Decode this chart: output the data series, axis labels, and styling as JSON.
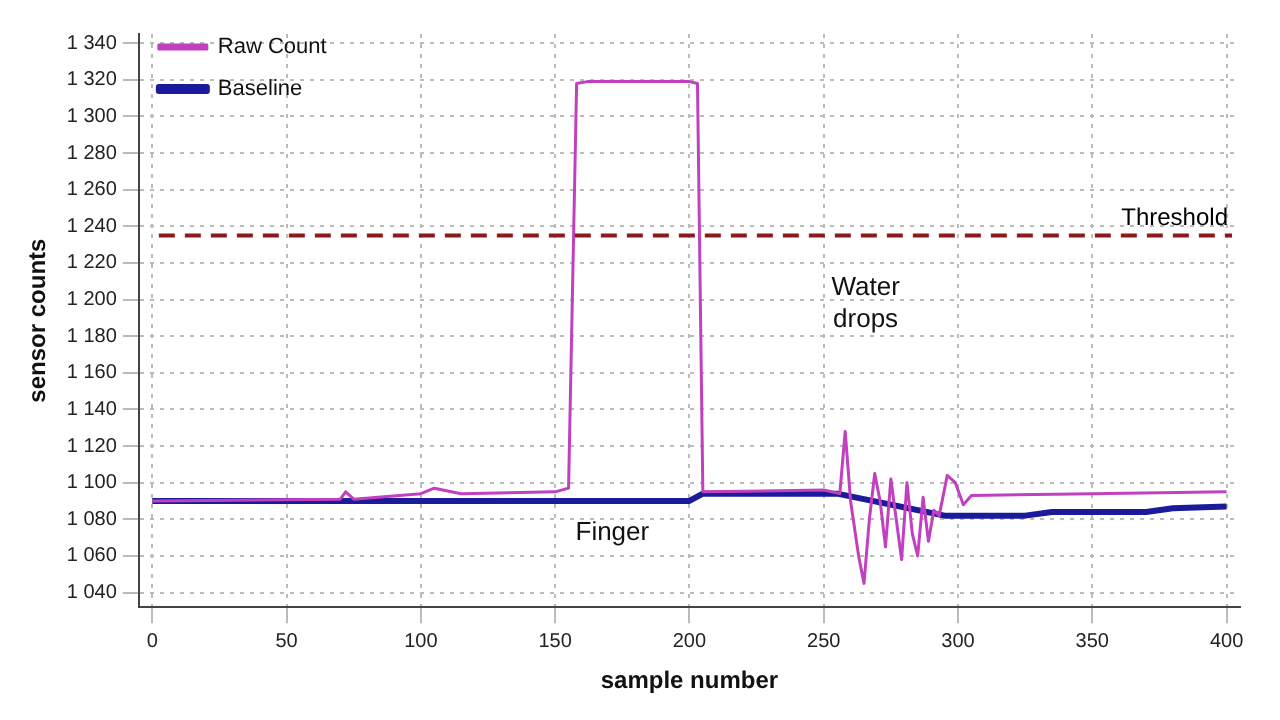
{
  "chart_data": {
    "type": "line",
    "xlabel": "sample number",
    "ylabel": "sensor counts",
    "xlim": [
      -5,
      405
    ],
    "xticks": [
      0,
      50,
      100,
      150,
      200,
      250,
      300,
      350,
      400
    ],
    "ylim": [
      1032,
      1345
    ],
    "yticks": [
      {
        "value": 1040,
        "label": "1 040"
      },
      {
        "value": 1060,
        "label": "1 060"
      },
      {
        "value": 1080,
        "label": "1 080"
      },
      {
        "value": 1100,
        "label": "1 100"
      },
      {
        "value": 1120,
        "label": "1 120"
      },
      {
        "value": 1140,
        "label": "1 140"
      },
      {
        "value": 1160,
        "label": "1 160"
      },
      {
        "value": 1180,
        "label": "1 180"
      },
      {
        "value": 1200,
        "label": "1 200"
      },
      {
        "value": 1220,
        "label": "1 220"
      },
      {
        "value": 1240,
        "label": "1 240"
      },
      {
        "value": 1260,
        "label": "1 260"
      },
      {
        "value": 1280,
        "label": "1 280"
      },
      {
        "value": 1300,
        "label": "1 300"
      },
      {
        "value": 1320,
        "label": "1 320"
      },
      {
        "value": 1340,
        "label": "1 340"
      }
    ],
    "grid": true,
    "legend": "top left",
    "marker": "none",
    "series": [
      {
        "name": "Raw Count",
        "color": "#c040c0",
        "x": [
          0,
          70,
          72,
          75,
          100,
          105,
          115,
          150,
          155,
          158,
          162,
          200,
          203,
          205,
          250,
          256,
          258,
          260,
          263,
          265,
          267,
          269,
          271,
          273,
          275,
          277,
          279,
          281,
          283,
          285,
          287,
          289,
          291,
          293,
          296,
          299,
          302,
          305,
          350,
          400
        ],
        "values": [
          1090,
          1091,
          1095,
          1091,
          1094,
          1097,
          1094,
          1095,
          1097,
          1318,
          1319,
          1319,
          1318,
          1095,
          1096,
          1094,
          1128,
          1090,
          1060,
          1045,
          1080,
          1105,
          1090,
          1065,
          1102,
          1080,
          1058,
          1100,
          1072,
          1060,
          1092,
          1068,
          1085,
          1082,
          1104,
          1100,
          1088,
          1093,
          1094,
          1095
        ]
      },
      {
        "name": "Baseline",
        "color": "#1a1a9a",
        "x": [
          0,
          200,
          205,
          255,
          295,
          325,
          335,
          370,
          380,
          400
        ],
        "values": [
          1090,
          1090,
          1094,
          1094,
          1082,
          1082,
          1084,
          1084,
          1086,
          1087
        ]
      }
    ],
    "ref_lines": [
      {
        "axis": "y",
        "value": 1235,
        "color": "#8b1a1a",
        "line_style": "dashed",
        "label": "Threshold"
      }
    ],
    "annotations": [
      "Water drops",
      "Finger"
    ]
  }
}
